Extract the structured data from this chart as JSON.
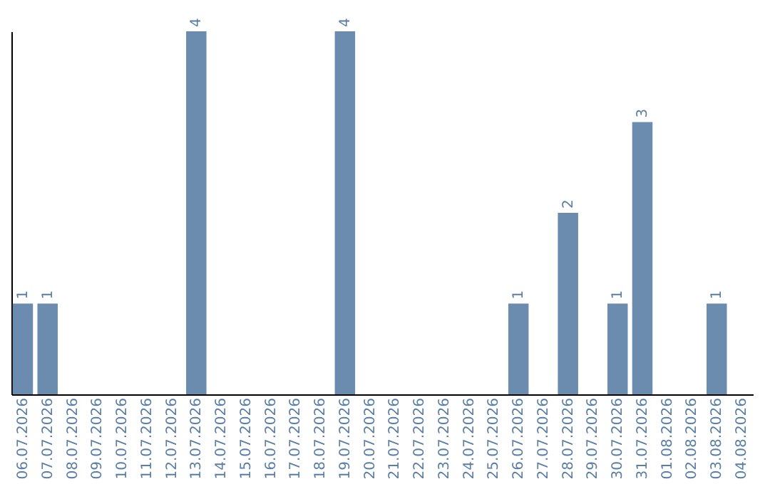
{
  "chart_data": {
    "type": "bar",
    "categories": [
      "06.07.2026",
      "07.07.2026",
      "08.07.2026",
      "09.07.2026",
      "10.07.2026",
      "11.07.2026",
      "12.07.2026",
      "13.07.2026",
      "14.07.2026",
      "15.07.2026",
      "16.07.2026",
      "17.07.2026",
      "18.07.2026",
      "19.07.2026",
      "20.07.2026",
      "21.07.2026",
      "22.07.2026",
      "23.07.2026",
      "24.07.2026",
      "25.07.2026",
      "26.07.2026",
      "27.07.2026",
      "28.07.2026",
      "29.07.2026",
      "30.07.2026",
      "31.07.2026",
      "01.08.2026",
      "02.08.2026",
      "03.08.2026",
      "04.08.2026"
    ],
    "values": [
      1,
      1,
      0,
      0,
      0,
      0,
      0,
      4,
      0,
      0,
      0,
      0,
      0,
      4,
      0,
      0,
      0,
      0,
      0,
      0,
      1,
      0,
      2,
      0,
      1,
      3,
      0,
      0,
      1,
      0
    ],
    "value_labels": [
      "1",
      "1",
      null,
      null,
      null,
      null,
      null,
      "4",
      null,
      null,
      null,
      null,
      null,
      "4",
      null,
      null,
      null,
      null,
      null,
      null,
      "1",
      null,
      "2",
      null,
      "1",
      "3",
      null,
      null,
      "1",
      null
    ],
    "color": "#6b8cae",
    "ylim": [
      0,
      4
    ],
    "tick_labels": "x",
    "grid": false
  }
}
